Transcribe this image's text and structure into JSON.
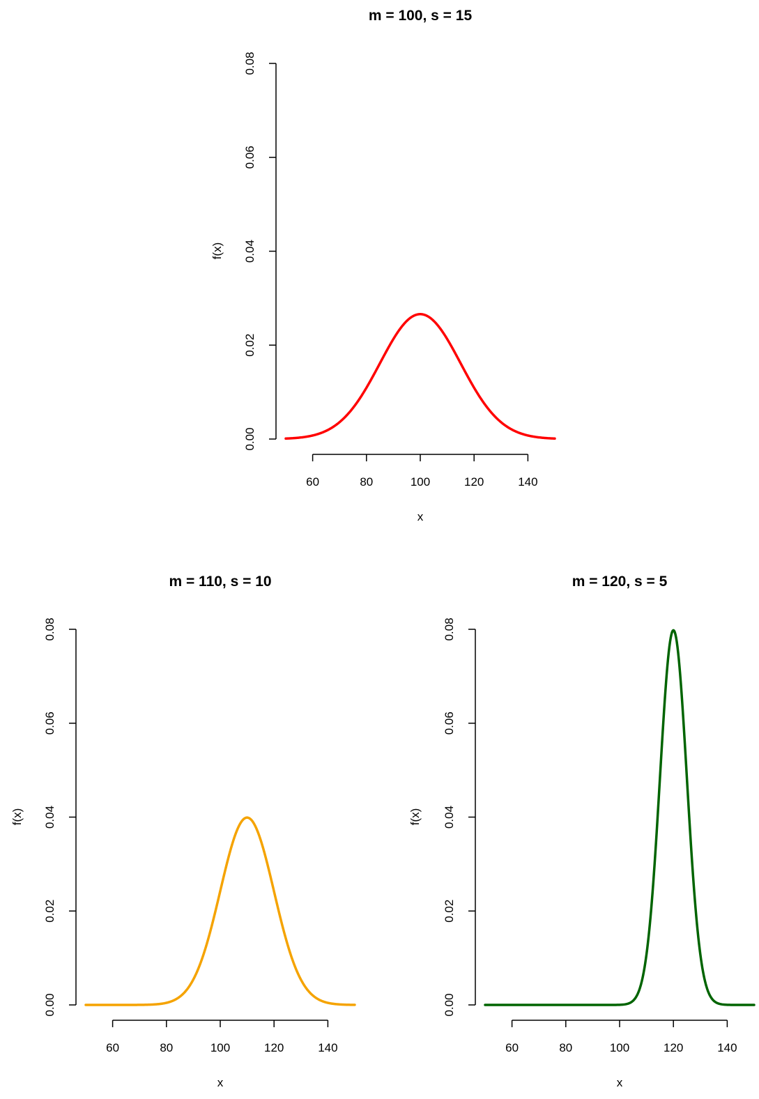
{
  "chart_data": [
    {
      "type": "line",
      "title": "m = 100, s = 15",
      "xlabel": "x",
      "ylabel": "f(x)",
      "xlim": [
        50,
        150
      ],
      "ylim": [
        0,
        0.08
      ],
      "x_ticks": [
        60,
        80,
        100,
        120,
        140
      ],
      "x_tick_labels": [
        "60",
        "80",
        "100",
        "120",
        "140"
      ],
      "y_ticks": [
        0,
        0.02,
        0.04,
        0.06,
        0.08
      ],
      "y_tick_labels": [
        "0.00",
        "0.02",
        "0.04",
        "0.06",
        "0.08"
      ],
      "grid": false,
      "series": [
        {
          "color": "#ff0000",
          "x": [
            50,
            60,
            70,
            80,
            90,
            100,
            110,
            120,
            130,
            140,
            150
          ],
          "values": [
            0.0001,
            0.0007,
            0.0036,
            0.0109,
            0.0213,
            0.0266,
            0.0213,
            0.0109,
            0.0036,
            0.0007,
            0.0001
          ]
        }
      ]
    },
    {
      "type": "line",
      "title": "m = 110, s = 10",
      "xlabel": "x",
      "ylabel": "f(x)",
      "xlim": [
        50,
        150
      ],
      "ylim": [
        0,
        0.08
      ],
      "x_ticks": [
        60,
        80,
        100,
        120,
        140
      ],
      "x_tick_labels": [
        "60",
        "80",
        "100",
        "120",
        "140"
      ],
      "y_ticks": [
        0,
        0.02,
        0.04,
        0.06,
        0.08
      ],
      "y_tick_labels": [
        "0.00",
        "0.02",
        "0.04",
        "0.06",
        "0.08"
      ],
      "grid": false,
      "series": [
        {
          "color": "#f5a300",
          "x": [
            50,
            60,
            70,
            80,
            90,
            100,
            105,
            110,
            115,
            120,
            130,
            140,
            150
          ],
          "values": [
            0.0,
            0.0,
            0.0001,
            0.0004,
            0.0054,
            0.0242,
            0.0352,
            0.0399,
            0.0352,
            0.0242,
            0.0054,
            0.0004,
            0.0
          ]
        }
      ]
    },
    {
      "type": "line",
      "title": "m = 120, s = 5",
      "xlabel": "x",
      "ylabel": "f(x)",
      "xlim": [
        50,
        150
      ],
      "ylim": [
        0,
        0.08
      ],
      "x_ticks": [
        60,
        80,
        100,
        120,
        140
      ],
      "x_tick_labels": [
        "60",
        "80",
        "100",
        "120",
        "140"
      ],
      "y_ticks": [
        0,
        0.02,
        0.04,
        0.06,
        0.08
      ],
      "y_tick_labels": [
        "0.00",
        "0.02",
        "0.04",
        "0.06",
        "0.08"
      ],
      "grid": false,
      "series": [
        {
          "color": "#006400",
          "x": [
            50,
            100,
            105,
            110,
            115,
            120,
            125,
            130,
            135,
            140,
            150
          ],
          "values": [
            0.0,
            0.0,
            0.0004,
            0.0108,
            0.0484,
            0.0798,
            0.0484,
            0.0108,
            0.0004,
            0.0,
            0.0
          ]
        }
      ]
    }
  ]
}
